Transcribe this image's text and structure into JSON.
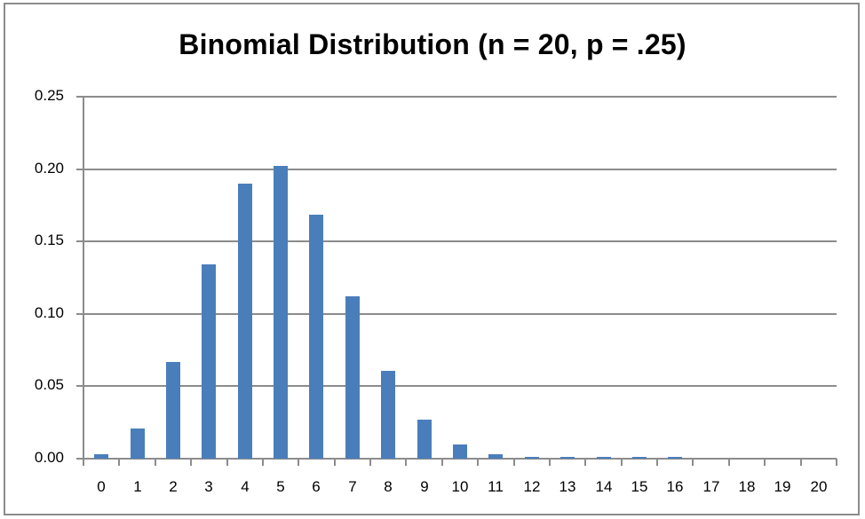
{
  "chart_data": {
    "type": "bar",
    "title": "Binomial Distribution (n = 20, p = .25)",
    "xlabel": "",
    "ylabel": "",
    "categories": [
      "0",
      "1",
      "2",
      "3",
      "4",
      "5",
      "6",
      "7",
      "8",
      "9",
      "10",
      "11",
      "12",
      "13",
      "14",
      "15",
      "16",
      "17",
      "18",
      "19",
      "20"
    ],
    "values": [
      0.0032,
      0.0211,
      0.0669,
      0.1339,
      0.1897,
      0.2023,
      0.1686,
      0.1124,
      0.0609,
      0.0271,
      0.0099,
      0.003,
      0.0008,
      0.0002,
      0.0001,
      0.0001,
      0.0001,
      0.0,
      0.0,
      0.0,
      0.0
    ],
    "ylim": [
      0,
      0.25
    ],
    "y_ticks": [
      "0.00",
      "0.05",
      "0.10",
      "0.15",
      "0.20",
      "0.25"
    ],
    "grid": true,
    "legend": "none",
    "bar_color": "#4a7ebb",
    "gridline_color": "#8c8c8c"
  }
}
